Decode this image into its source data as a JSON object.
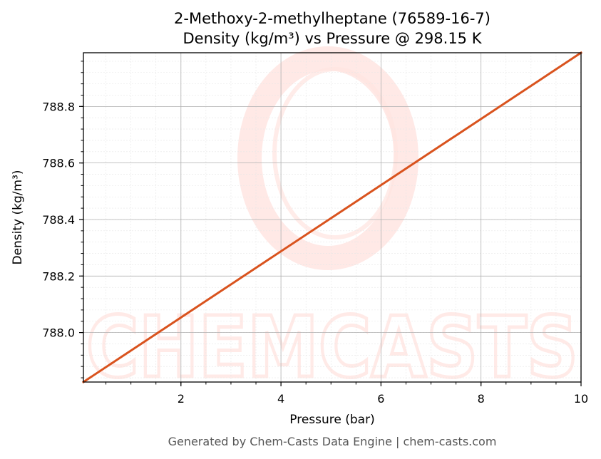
{
  "chart_data": {
    "type": "line",
    "title": "2-Methoxy-2-methylheptane (76589-16-7)",
    "subtitle": "Density (kg/m³) vs Pressure @ 298.15 K",
    "xlabel": "Pressure (bar)",
    "ylabel": "Density (kg/m³)",
    "xlim": [
      0.05,
      10
    ],
    "ylim": [
      787.825,
      788.99
    ],
    "x_ticks": [
      2,
      4,
      6,
      8,
      10
    ],
    "x_tick_labels": [
      "2",
      "4",
      "6",
      "8",
      "10"
    ],
    "y_ticks": [
      788.0,
      788.2,
      788.4,
      788.6,
      788.8
    ],
    "y_tick_labels": [
      "788.0",
      "788.2",
      "788.4",
      "788.6",
      "788.8"
    ],
    "grid": true,
    "series": [
      {
        "color": "#d9531e",
        "x": [
          0.05,
          10
        ],
        "y": [
          787.825,
          788.99
        ]
      }
    ]
  },
  "watermark": {
    "text": "CHEMCASTS",
    "color": "#ffdad5"
  },
  "footer": {
    "text": "Generated by Chem-Casts Data Engine | chem-casts.com"
  }
}
